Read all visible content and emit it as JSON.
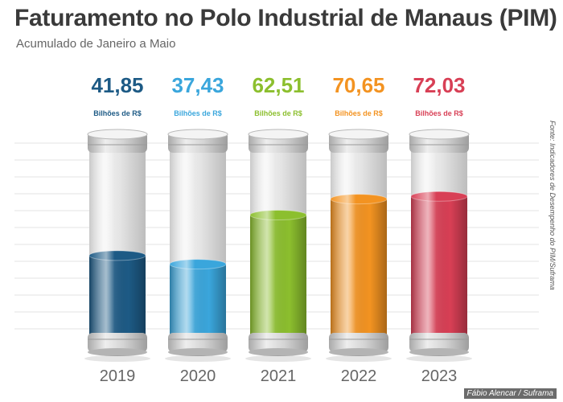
{
  "title": "Faturamento no Polo Industrial de Manaus (PIM)",
  "subtitle": "Acumulado de Janeiro a Maio",
  "source": "Fonte: Indicadores de Desempenho do PIM/Suframa",
  "credit": "Fábio Alencar / Suframa",
  "chart_data": {
    "type": "bar",
    "unit": "Bilhões de R$",
    "categories": [
      "2019",
      "2020",
      "2021",
      "2022",
      "2023"
    ],
    "values": [
      41.85,
      37.43,
      62.51,
      70.65,
      72.03
    ],
    "labels": [
      "41,85",
      "37,43",
      "62,51",
      "70,65",
      "72,03"
    ],
    "colors": [
      "#1d5a85",
      "#3aa6dc",
      "#8cbf2e",
      "#f39321",
      "#d83f55"
    ],
    "ylim": [
      0,
      100
    ]
  }
}
